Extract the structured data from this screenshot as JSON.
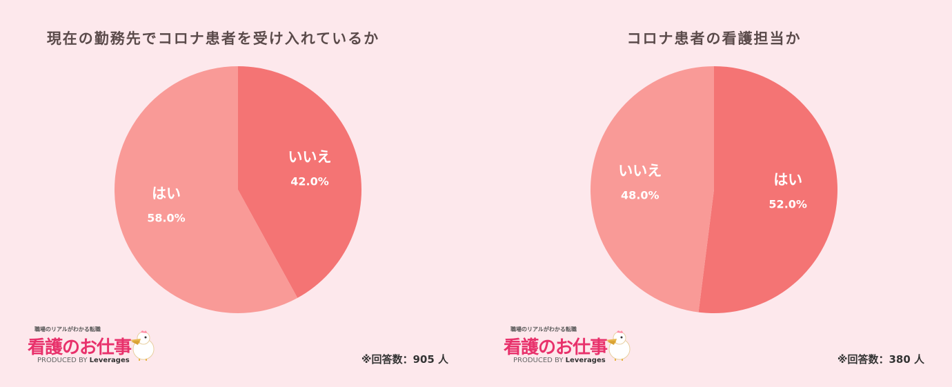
{
  "charts": [
    {
      "title": "現在の勤務先でコロナ患者を受け入れているか",
      "respondents": "※回答数：905 人",
      "logo": {
        "tagline": "職場のリアルがわかる転職",
        "name": "看護のお仕事",
        "produced_prefix": "PRODUCED BY",
        "produced_brand": "Leverages"
      }
    },
    {
      "title": "コロナ患者の看護担当か",
      "respondents": "※回答数：380 人",
      "logo": {
        "tagline": "職場のリアルがわかる転職",
        "name": "看護のお仕事",
        "produced_prefix": "PRODUCED BY",
        "produced_brand": "Leverages"
      }
    }
  ],
  "chart_data": [
    {
      "type": "pie",
      "title": "現在の勤務先でコロナ患者を受け入れているか",
      "slices": [
        {
          "label": "いいえ",
          "value": 42.0,
          "display": "42.0%",
          "color": "#f47474"
        },
        {
          "label": "はい",
          "value": 58.0,
          "display": "58.0%",
          "color": "#f99a97"
        }
      ],
      "start": "12 o'clock",
      "direction": "clockwise"
    },
    {
      "type": "pie",
      "title": "コロナ患者の看護担当か",
      "slices": [
        {
          "label": "はい",
          "value": 52.0,
          "display": "52.0%",
          "color": "#f47474"
        },
        {
          "label": "いいえ",
          "value": 48.0,
          "display": "48.0%",
          "color": "#f99a97"
        }
      ],
      "start": "12 o'clock",
      "direction": "clockwise"
    }
  ]
}
